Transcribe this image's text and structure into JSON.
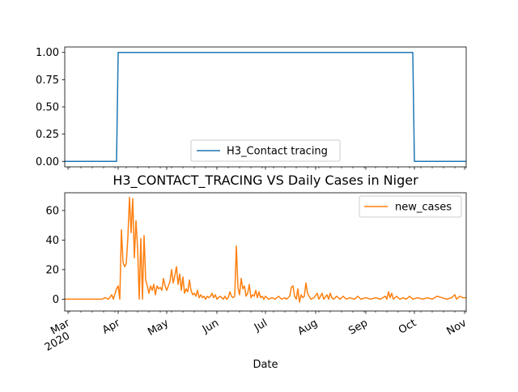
{
  "chart_data": [
    {
      "type": "line",
      "title": "",
      "xlabel": "",
      "ylabel": "",
      "ylim": [
        -0.05,
        1.05
      ],
      "yticks": [
        "0.00",
        "0.25",
        "0.50",
        "0.75",
        "1.00"
      ],
      "legend_position": "lower-center",
      "grid": false,
      "series": [
        {
          "name": "H3_Contact tracing",
          "color": "#1f77b4",
          "points": [
            [
              "2020-02-28",
              0
            ],
            [
              "2020-03-31",
              0
            ],
            [
              "2020-04-01",
              1
            ],
            [
              "2020-09-30",
              1
            ],
            [
              "2020-10-01",
              0
            ],
            [
              "2020-11-02",
              0
            ]
          ]
        }
      ]
    },
    {
      "type": "line",
      "title": "H3_CONTACT_TRACING VS Daily Cases in Niger",
      "xlabel": "Date",
      "ylabel": "",
      "ylim": [
        -8,
        72
      ],
      "yticks": [
        "0",
        "20",
        "40",
        "60"
      ],
      "xticks": [
        {
          "date": "2020-03-01",
          "label": "Mar",
          "sublabel": "2020"
        },
        {
          "date": "2020-04-01",
          "label": "Apr"
        },
        {
          "date": "2020-05-01",
          "label": "May"
        },
        {
          "date": "2020-06-01",
          "label": "Jun"
        },
        {
          "date": "2020-07-01",
          "label": "Jul"
        },
        {
          "date": "2020-08-01",
          "label": "Aug"
        },
        {
          "date": "2020-09-01",
          "label": "Sep"
        },
        {
          "date": "2020-10-01",
          "label": "Oct"
        },
        {
          "date": "2020-11-01",
          "label": "Nov"
        }
      ],
      "legend_position": "upper-right",
      "grid": false,
      "series": [
        {
          "name": "new_cases",
          "color": "#ff7f0e",
          "points": [
            [
              "2020-02-28",
              0
            ],
            [
              "2020-03-22",
              0
            ],
            [
              "2020-03-24",
              1
            ],
            [
              "2020-03-26",
              0
            ],
            [
              "2020-03-28",
              3
            ],
            [
              "2020-03-29",
              0
            ],
            [
              "2020-03-31",
              7
            ],
            [
              "2020-04-01",
              9
            ],
            [
              "2020-04-02",
              0
            ],
            [
              "2020-04-03",
              47
            ],
            [
              "2020-04-04",
              25
            ],
            [
              "2020-04-05",
              22
            ],
            [
              "2020-04-06",
              24
            ],
            [
              "2020-04-07",
              42
            ],
            [
              "2020-04-08",
              69
            ],
            [
              "2020-04-09",
              45
            ],
            [
              "2020-04-10",
              68
            ],
            [
              "2020-04-11",
              28
            ],
            [
              "2020-04-12",
              53
            ],
            [
              "2020-04-13",
              35
            ],
            [
              "2020-04-14",
              0
            ],
            [
              "2020-04-15",
              41
            ],
            [
              "2020-04-16",
              0
            ],
            [
              "2020-04-17",
              43
            ],
            [
              "2020-04-18",
              13
            ],
            [
              "2020-04-19",
              9
            ],
            [
              "2020-04-20",
              4
            ],
            [
              "2020-04-21",
              9
            ],
            [
              "2020-04-22",
              6
            ],
            [
              "2020-04-23",
              10
            ],
            [
              "2020-04-24",
              3
            ],
            [
              "2020-04-25",
              9
            ],
            [
              "2020-04-26",
              7
            ],
            [
              "2020-04-27",
              8
            ],
            [
              "2020-04-28",
              6
            ],
            [
              "2020-04-29",
              14
            ],
            [
              "2020-04-30",
              9
            ],
            [
              "2020-05-01",
              6
            ],
            [
              "2020-05-02",
              9
            ],
            [
              "2020-05-03",
              12
            ],
            [
              "2020-05-04",
              20
            ],
            [
              "2020-05-05",
              11
            ],
            [
              "2020-05-06",
              16
            ],
            [
              "2020-05-07",
              22
            ],
            [
              "2020-05-08",
              10
            ],
            [
              "2020-05-09",
              17
            ],
            [
              "2020-05-10",
              6
            ],
            [
              "2020-05-11",
              15
            ],
            [
              "2020-05-12",
              4
            ],
            [
              "2020-05-13",
              7
            ],
            [
              "2020-05-14",
              5
            ],
            [
              "2020-05-15",
              13
            ],
            [
              "2020-05-16",
              6
            ],
            [
              "2020-05-17",
              3
            ],
            [
              "2020-05-18",
              4
            ],
            [
              "2020-05-19",
              2
            ],
            [
              "2020-05-20",
              6
            ],
            [
              "2020-05-21",
              1
            ],
            [
              "2020-05-22",
              3
            ],
            [
              "2020-05-23",
              1
            ],
            [
              "2020-05-24",
              2
            ],
            [
              "2020-05-25",
              0
            ],
            [
              "2020-05-26",
              2
            ],
            [
              "2020-05-27",
              1
            ],
            [
              "2020-05-28",
              2
            ],
            [
              "2020-05-29",
              4
            ],
            [
              "2020-05-30",
              1
            ],
            [
              "2020-05-31",
              3
            ],
            [
              "2020-06-01",
              0
            ],
            [
              "2020-06-02",
              1
            ],
            [
              "2020-06-03",
              2
            ],
            [
              "2020-06-04",
              1
            ],
            [
              "2020-06-05",
              0
            ],
            [
              "2020-06-06",
              2
            ],
            [
              "2020-06-07",
              0
            ],
            [
              "2020-06-08",
              1
            ],
            [
              "2020-06-09",
              5
            ],
            [
              "2020-06-10",
              2
            ],
            [
              "2020-06-11",
              1
            ],
            [
              "2020-06-12",
              2
            ],
            [
              "2020-06-13",
              36
            ],
            [
              "2020-06-14",
              8
            ],
            [
              "2020-06-15",
              3
            ],
            [
              "2020-06-16",
              14
            ],
            [
              "2020-06-17",
              7
            ],
            [
              "2020-06-18",
              9
            ],
            [
              "2020-06-19",
              2
            ],
            [
              "2020-06-20",
              4
            ],
            [
              "2020-06-21",
              10
            ],
            [
              "2020-06-22",
              1
            ],
            [
              "2020-06-23",
              3
            ],
            [
              "2020-06-24",
              2
            ],
            [
              "2020-06-25",
              6
            ],
            [
              "2020-06-26",
              1
            ],
            [
              "2020-06-27",
              5
            ],
            [
              "2020-06-28",
              1
            ],
            [
              "2020-06-29",
              2
            ],
            [
              "2020-06-30",
              0
            ],
            [
              "2020-07-01",
              2
            ],
            [
              "2020-07-03",
              0
            ],
            [
              "2020-07-05",
              1
            ],
            [
              "2020-07-07",
              0
            ],
            [
              "2020-07-09",
              2
            ],
            [
              "2020-07-11",
              0
            ],
            [
              "2020-07-13",
              1
            ],
            [
              "2020-07-14",
              0
            ],
            [
              "2020-07-16",
              2
            ],
            [
              "2020-07-17",
              8
            ],
            [
              "2020-07-18",
              9
            ],
            [
              "2020-07-19",
              2
            ],
            [
              "2020-07-20",
              0
            ],
            [
              "2020-07-21",
              7
            ],
            [
              "2020-07-22",
              -2
            ],
            [
              "2020-07-23",
              3
            ],
            [
              "2020-07-24",
              1
            ],
            [
              "2020-07-25",
              2
            ],
            [
              "2020-07-26",
              11
            ],
            [
              "2020-07-27",
              4
            ],
            [
              "2020-07-28",
              2
            ],
            [
              "2020-07-29",
              0
            ],
            [
              "2020-07-31",
              1
            ],
            [
              "2020-08-02",
              4
            ],
            [
              "2020-08-03",
              0
            ],
            [
              "2020-08-05",
              4
            ],
            [
              "2020-08-06",
              0
            ],
            [
              "2020-08-08",
              3
            ],
            [
              "2020-08-09",
              0
            ],
            [
              "2020-08-10",
              4
            ],
            [
              "2020-08-11",
              1
            ],
            [
              "2020-08-12",
              0
            ],
            [
              "2020-08-14",
              2
            ],
            [
              "2020-08-16",
              0
            ],
            [
              "2020-08-18",
              2
            ],
            [
              "2020-08-20",
              0
            ],
            [
              "2020-08-22",
              1
            ],
            [
              "2020-08-25",
              0
            ],
            [
              "2020-08-27",
              2
            ],
            [
              "2020-08-29",
              0
            ],
            [
              "2020-09-01",
              1
            ],
            [
              "2020-09-04",
              0
            ],
            [
              "2020-09-07",
              1
            ],
            [
              "2020-09-10",
              0
            ],
            [
              "2020-09-13",
              2
            ],
            [
              "2020-09-14",
              0
            ],
            [
              "2020-09-15",
              5
            ],
            [
              "2020-09-16",
              1
            ],
            [
              "2020-09-17",
              4
            ],
            [
              "2020-09-18",
              0
            ],
            [
              "2020-09-20",
              2
            ],
            [
              "2020-09-22",
              0
            ],
            [
              "2020-09-24",
              1
            ],
            [
              "2020-09-26",
              0
            ],
            [
              "2020-09-28",
              2
            ],
            [
              "2020-09-30",
              0
            ],
            [
              "2020-10-03",
              1
            ],
            [
              "2020-10-06",
              0
            ],
            [
              "2020-10-09",
              1
            ],
            [
              "2020-10-12",
              0
            ],
            [
              "2020-10-15",
              2
            ],
            [
              "2020-10-18",
              1
            ],
            [
              "2020-10-21",
              0
            ],
            [
              "2020-10-24",
              1
            ],
            [
              "2020-10-26",
              3
            ],
            [
              "2020-10-27",
              0
            ],
            [
              "2020-10-29",
              2
            ],
            [
              "2020-10-31",
              1
            ],
            [
              "2020-11-02",
              1
            ]
          ]
        }
      ]
    }
  ]
}
